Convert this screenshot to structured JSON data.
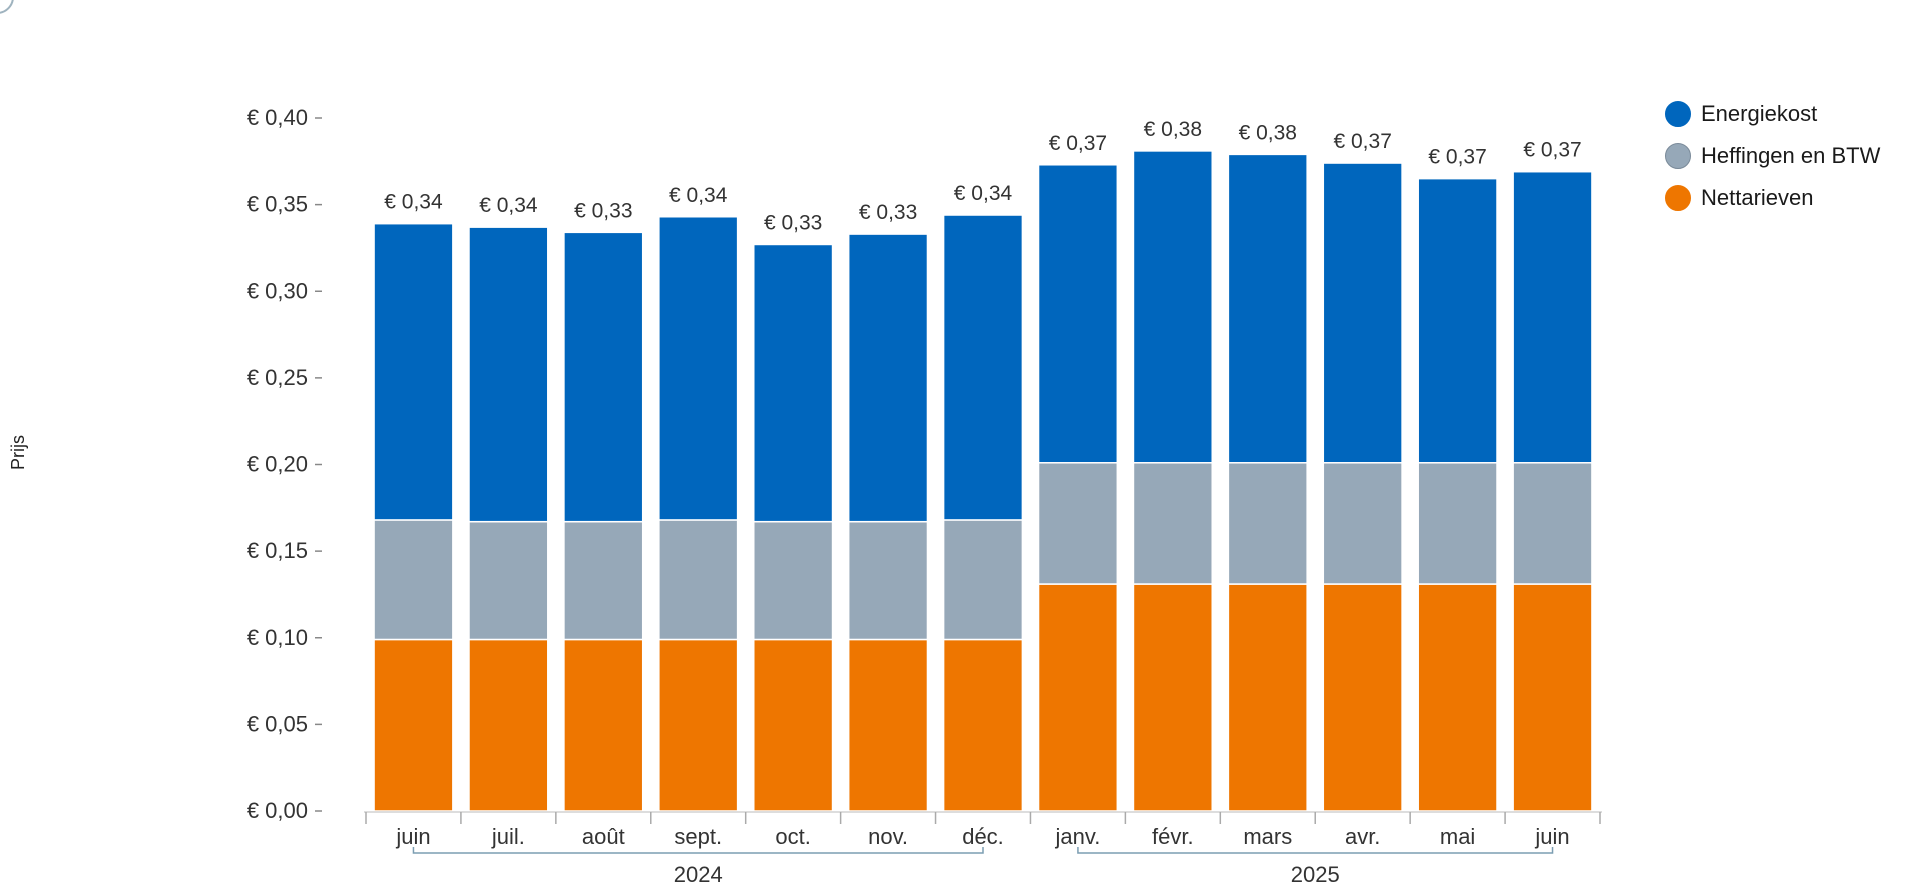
{
  "chart_data": {
    "type": "bar",
    "stacked": true,
    "ylabel": "Prijs",
    "ylim": [
      0,
      0.4
    ],
    "yticks": [
      "€ 0,00",
      "€ 0,05",
      "€ 0,10",
      "€ 0,15",
      "€ 0,20",
      "€ 0,25",
      "€ 0,30",
      "€ 0,35",
      "€ 0,40"
    ],
    "ytick_values": [
      0,
      0.05,
      0.1,
      0.15,
      0.2,
      0.25,
      0.3,
      0.35,
      0.4
    ],
    "categories": [
      "juin",
      "juil.",
      "août",
      "sept.",
      "oct.",
      "nov.",
      "déc.",
      "janv.",
      "févr.",
      "mars",
      "avr.",
      "mai",
      "juin"
    ],
    "year_groups": [
      {
        "label": "2024",
        "start": 0,
        "end": 6
      },
      {
        "label": "2025",
        "start": 7,
        "end": 12
      }
    ],
    "series": [
      {
        "name": "Nettarieven",
        "color": "#ee7600",
        "values": [
          0.099,
          0.099,
          0.099,
          0.099,
          0.099,
          0.099,
          0.099,
          0.131,
          0.131,
          0.131,
          0.131,
          0.131,
          0.131
        ]
      },
      {
        "name": "Heffingen en BTW",
        "color": "#96a8b8",
        "values": [
          0.069,
          0.068,
          0.068,
          0.069,
          0.068,
          0.068,
          0.069,
          0.07,
          0.07,
          0.07,
          0.07,
          0.07,
          0.07
        ]
      },
      {
        "name": "Energiekost",
        "color": "#0066bd",
        "values": [
          0.171,
          0.17,
          0.167,
          0.175,
          0.16,
          0.166,
          0.176,
          0.172,
          0.18,
          0.178,
          0.173,
          0.164,
          0.168
        ]
      }
    ],
    "totals": [
      "€ 0,34",
      "€ 0,34",
      "€ 0,33",
      "€ 0,34",
      "€ 0,33",
      "€ 0,33",
      "€ 0,34",
      "€ 0,37",
      "€ 0,38",
      "€ 0,38",
      "€ 0,37",
      "€ 0,37",
      "€ 0,37"
    ],
    "legend_position": "top-right",
    "legend_order": [
      "Energiekost",
      "Heffingen en BTW",
      "Nettarieven"
    ],
    "grid": false
  }
}
